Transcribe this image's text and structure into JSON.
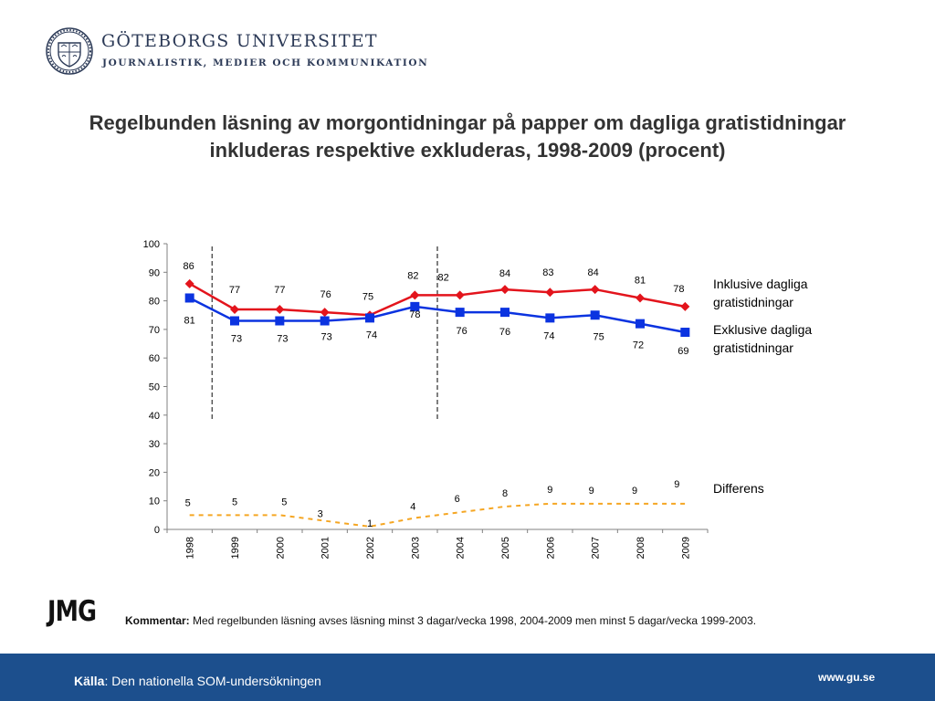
{
  "header": {
    "university": "GÖTEBORGS UNIVERSITET",
    "department": "JOURNALISTIK, MEDIER OCH KOMMUNIKATION",
    "seal_icon": "university-seal-icon"
  },
  "colors": {
    "red": "#e3141c",
    "blue": "#0b33e0",
    "orange": "#f5a623",
    "footer": "#1c4f8d",
    "title": "#333333"
  },
  "chart_data": {
    "type": "line",
    "title": "Regelbunden läsning av morgontidningar på papper om dagliga gratistidningar inkluderas respektive exkluderas, 1998-2009 (procent)",
    "categories": [
      "1998",
      "1999",
      "2000",
      "2001",
      "2002",
      "2003",
      "2004",
      "2005",
      "2006",
      "2007",
      "2008",
      "2009"
    ],
    "ylim": [
      0,
      100
    ],
    "yticks": [
      0,
      10,
      20,
      30,
      40,
      50,
      60,
      70,
      80,
      90,
      100
    ],
    "grid": false,
    "legend_placement": "right",
    "series": [
      {
        "name": "Inklusive dagliga gratistidningar",
        "values": [
          86,
          77,
          77,
          76,
          75,
          82,
          82,
          84,
          83,
          84,
          81,
          78
        ],
        "color": "#e3141c",
        "marker": "diamond",
        "style": "solid"
      },
      {
        "name": "Exklusive dagliga gratistidningar",
        "values": [
          81,
          73,
          73,
          73,
          74,
          78,
          76,
          76,
          74,
          75,
          72,
          69
        ],
        "color": "#0b33e0",
        "marker": "square",
        "style": "solid"
      },
      {
        "name": "Differens",
        "values": [
          5,
          5,
          5,
          3,
          1,
          4,
          6,
          8,
          9,
          9,
          9,
          9
        ],
        "color": "#f5a623",
        "marker": "none",
        "style": "dashed"
      }
    ],
    "reference_lines": [
      {
        "between": [
          "1998",
          "1999"
        ]
      },
      {
        "between": [
          "2003",
          "2004"
        ]
      }
    ]
  },
  "legend_labels": {
    "inklusive": [
      "Inklusive dagliga",
      "gratistidningar"
    ],
    "exklusive": [
      "Exklusive dagliga",
      "gratistidningar"
    ],
    "differens": [
      "Differens"
    ]
  },
  "logo": {
    "jmg": "JMG"
  },
  "comment": {
    "label": "Kommentar:",
    "text": " Med regelbunden läsning avses läsning minst 3 dagar/vecka 1998, 2004-2009 men minst 5 dagar/vecka 1999-2003."
  },
  "footer": {
    "source_label": "Källa",
    "source_text": ": Den nationella SOM-undersökningen",
    "url": "www.gu.se"
  }
}
